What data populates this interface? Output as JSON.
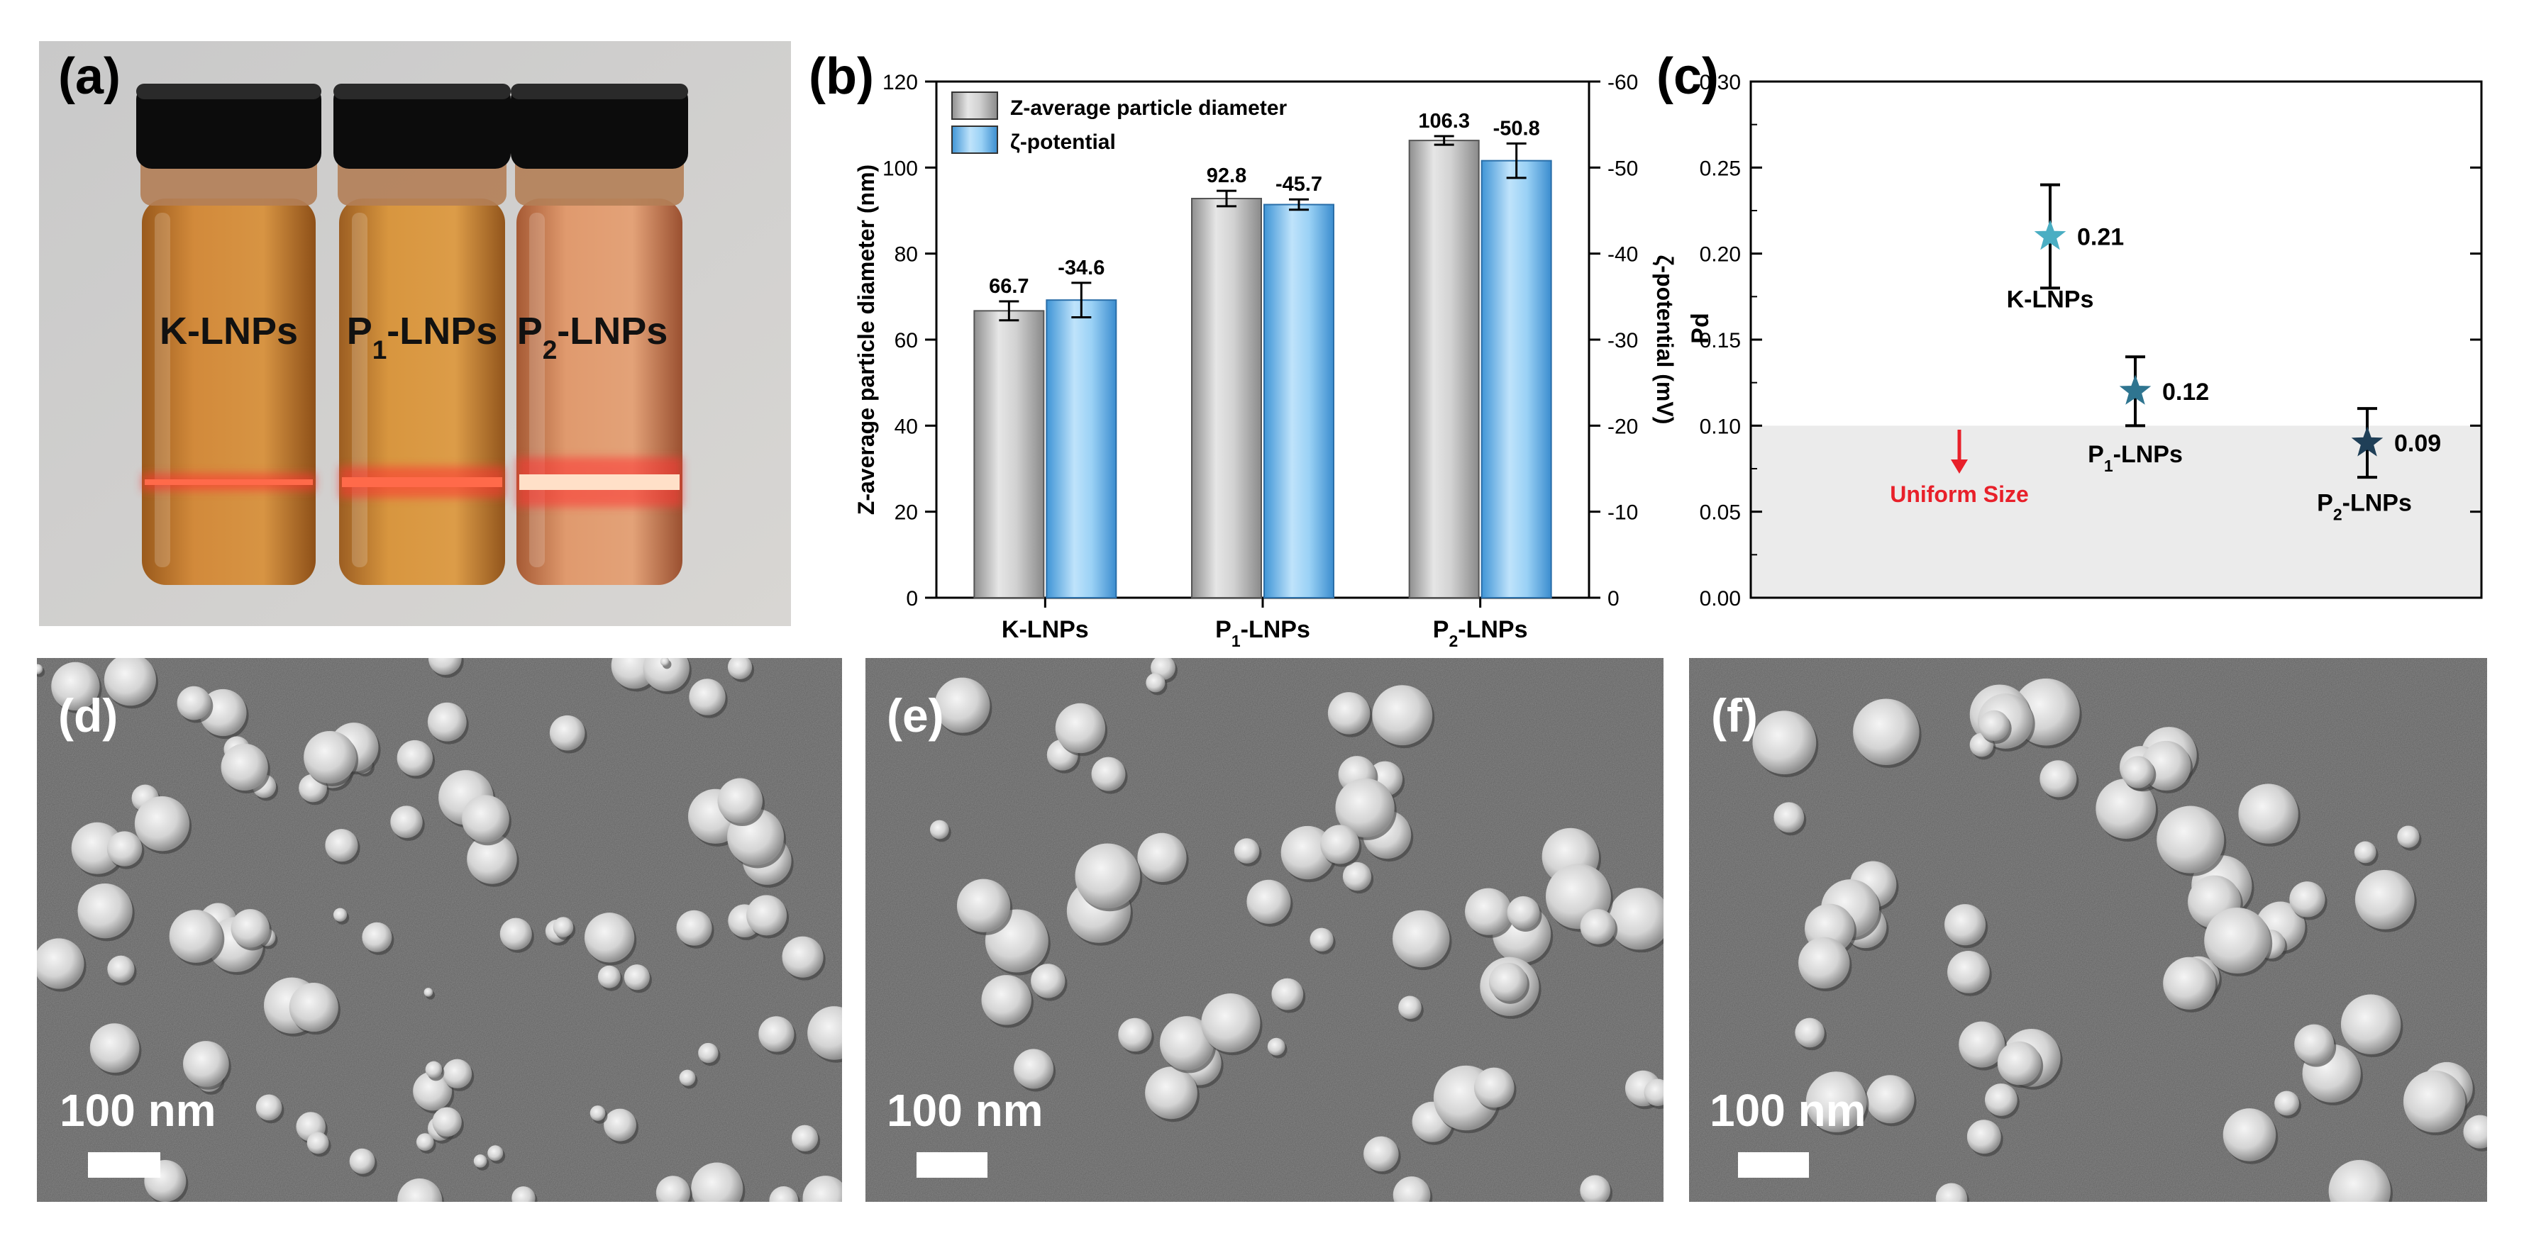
{
  "panel_labels": {
    "a": "(a)",
    "b": "(b)",
    "c": "(c)",
    "d": "(d)",
    "e": "(e)",
    "f": "(f)"
  },
  "vials": [
    {
      "label_base": "K-LNPs",
      "label_sub": "",
      "label_tail": ""
    },
    {
      "label_base": "P",
      "label_sub": "1",
      "label_tail": "-LNPs"
    },
    {
      "label_base": "P",
      "label_sub": "2",
      "label_tail": "-LNPs"
    }
  ],
  "chart_data": [
    {
      "type": "bar",
      "panel": "(b)",
      "title": "",
      "categories": [
        {
          "base": "K-LNPs",
          "sub": "",
          "tail": ""
        },
        {
          "base": "P",
          "sub": "1",
          "tail": "-LNPs"
        },
        {
          "base": "P",
          "sub": "2",
          "tail": "-LNPs"
        }
      ],
      "ylabel": "Z-average particle diameter (nm)",
      "y2label": "ζ-potential (mV)",
      "ylim": [
        0,
        120
      ],
      "y2lim": [
        0,
        -60
      ],
      "yticks": [
        0,
        20,
        40,
        60,
        80,
        100,
        120
      ],
      "y2ticks": [
        0,
        -10,
        -20,
        -30,
        -40,
        -50,
        -60
      ],
      "legend_position": "top-left",
      "series": [
        {
          "name": "Z-average particle diameter",
          "axis": "left",
          "values": [
            66.7,
            92.8,
            106.3
          ],
          "errors": [
            2.2,
            1.8,
            1.0
          ],
          "labels": [
            "66.7",
            "92.8",
            "106.3"
          ],
          "color": "#b8b8b8"
        },
        {
          "name": "ζ-potential",
          "axis": "right",
          "values": [
            -34.6,
            -45.7,
            -50.8
          ],
          "errors": [
            2.0,
            0.6,
            2.0
          ],
          "labels": [
            "-34.6",
            "-45.7",
            "-50.8"
          ],
          "color": "#6ab4ec"
        }
      ]
    },
    {
      "type": "scatter",
      "panel": "(c)",
      "ylabel": "Pd",
      "ylim": [
        0,
        0.3
      ],
      "yticks": [
        "0.00",
        "0.05",
        "0.10",
        "0.15",
        "0.20",
        "0.25",
        "0.30"
      ],
      "points": [
        {
          "x": 1,
          "y": 0.21,
          "error": 0.03,
          "label": "0.21",
          "name_base": "K-LNPs",
          "name_sub": "",
          "name_tail": "",
          "color": "#4aaec3"
        },
        {
          "x": 2,
          "y": 0.12,
          "error": 0.02,
          "label": "0.12",
          "name_base": "P",
          "name_sub": "1",
          "name_tail": "-LNPs",
          "color": "#2f7590"
        },
        {
          "x": 3,
          "y": 0.09,
          "error": 0.02,
          "label": "0.09",
          "name_base": "P",
          "name_sub": "2",
          "name_tail": "-LNPs",
          "color": "#1f3f57"
        }
      ],
      "shaded_region": {
        "y_from": 0,
        "y_to": 0.1,
        "color": "#ebebeb"
      },
      "annotation": {
        "text": "Uniform Size",
        "color": "#e8202a"
      }
    }
  ],
  "sem_images": [
    {
      "panel": "(d)",
      "scale_bar": "100 nm"
    },
    {
      "panel": "(e)",
      "scale_bar": "100 nm"
    },
    {
      "panel": "(f)",
      "scale_bar": "100 nm"
    }
  ]
}
